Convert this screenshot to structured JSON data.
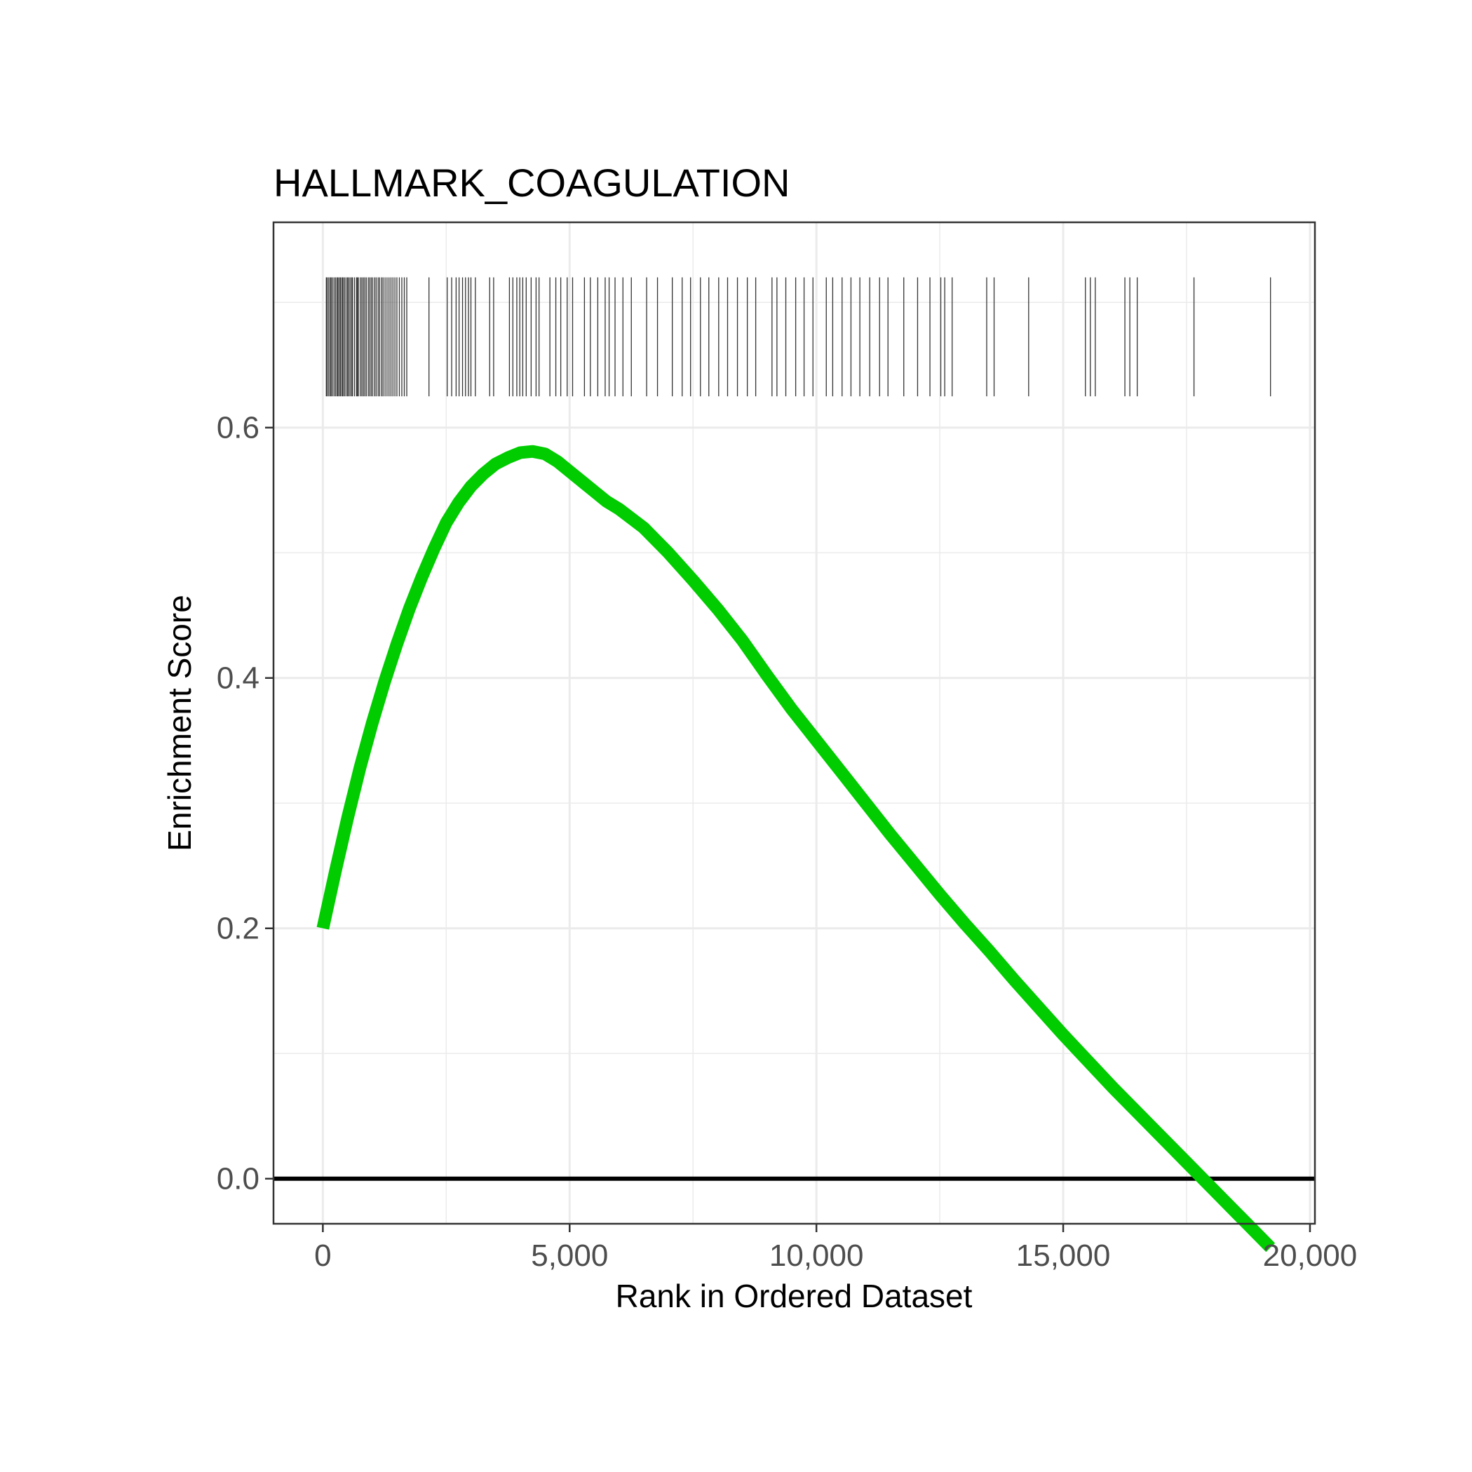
{
  "chart_data": {
    "type": "line",
    "title": "HALLMARK_COAGULATION",
    "xlabel": "Rank in Ordered Dataset",
    "ylabel": "Enrichment Score",
    "xlim": [
      -1000,
      20100
    ],
    "ylim": [
      -0.036,
      0.764
    ],
    "x_ticks": [
      {
        "value": 0,
        "label": "0"
      },
      {
        "value": 5000,
        "label": "5,000"
      },
      {
        "value": 10000,
        "label": "10,000"
      },
      {
        "value": 15000,
        "label": "15,000"
      },
      {
        "value": 20000,
        "label": "20,000"
      }
    ],
    "y_ticks": [
      {
        "value": 0.0,
        "label": "0.0"
      },
      {
        "value": 0.2,
        "label": "0.2"
      },
      {
        "value": 0.4,
        "label": "0.4"
      },
      {
        "value": 0.6,
        "label": "0.6"
      }
    ],
    "grid": true,
    "reference_line_y": 0,
    "colors": {
      "curve": "#00cc00",
      "ticks": "#333333",
      "grid": "#ebebeb",
      "zero_line": "#000000",
      "panel_border": "#333333"
    },
    "series": [
      {
        "x": [
          0,
          250,
          500,
          750,
          1000,
          1250,
          1500,
          1750,
          2000,
          2250,
          2500,
          2750,
          3000,
          3250,
          3500,
          3750,
          4000,
          4250,
          4500,
          4750,
          5000,
          5250,
          5500,
          5750,
          6000,
          6500,
          7000,
          7500,
          8000,
          8500,
          9000,
          9500,
          10000,
          10500,
          11000,
          11500,
          12000,
          12500,
          13000,
          13500,
          14000,
          14500,
          15000,
          15500,
          16000,
          16500,
          17000,
          17500,
          18000,
          18500,
          19000,
          19200
        ],
        "y": [
          0.2,
          0.245,
          0.288,
          0.328,
          0.364,
          0.397,
          0.427,
          0.455,
          0.48,
          0.503,
          0.524,
          0.54,
          0.553,
          0.563,
          0.571,
          0.576,
          0.58,
          0.581,
          0.579,
          0.573,
          0.565,
          0.557,
          0.549,
          0.541,
          0.535,
          0.52,
          0.5,
          0.478,
          0.455,
          0.43,
          0.402,
          0.375,
          0.35,
          0.325,
          0.3,
          0.275,
          0.251,
          0.227,
          0.204,
          0.182,
          0.159,
          0.137,
          0.115,
          0.094,
          0.073,
          0.053,
          0.033,
          0.013,
          -0.007,
          -0.027,
          -0.047,
          -0.055
        ]
      }
    ],
    "gene_hits": [
      70,
      90,
      120,
      150,
      170,
      200,
      230,
      260,
      290,
      310,
      340,
      360,
      390,
      410,
      440,
      470,
      500,
      520,
      550,
      580,
      600,
      640,
      680,
      700,
      720,
      760,
      790,
      820,
      850,
      880,
      920,
      950,
      980,
      1010,
      1050,
      1080,
      1120,
      1150,
      1190,
      1220,
      1260,
      1300,
      1340,
      1380,
      1420,
      1460,
      1500,
      1550,
      1600,
      1650,
      1700,
      2150,
      2520,
      2610,
      2700,
      2760,
      2830,
      2890,
      2950,
      3000,
      3090,
      3380,
      3460,
      3780,
      3850,
      3930,
      3990,
      4050,
      4120,
      4220,
      4320,
      4380,
      4600,
      4720,
      4820,
      4950,
      5060,
      5300,
      5420,
      5570,
      5720,
      5800,
      5920,
      6080,
      6250,
      6560,
      6780,
      7080,
      7280,
      7450,
      7650,
      7820,
      8020,
      8200,
      8400,
      8600,
      8770,
      9100,
      9200,
      9380,
      9580,
      9750,
      9930,
      10200,
      10330,
      10520,
      10700,
      10880,
      11080,
      11280,
      11450,
      11770,
      12050,
      12300,
      12520,
      12600,
      12750,
      13450,
      13600,
      14300,
      15450,
      15550,
      15650,
      16250,
      16350,
      16500,
      17650,
      19200
    ]
  }
}
